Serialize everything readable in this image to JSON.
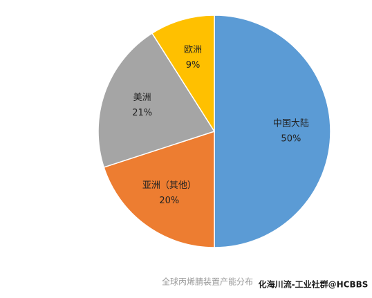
{
  "chart_data": {
    "type": "pie",
    "categories": [
      "中国大陆",
      "亚洲（其他）",
      "美洲",
      "欧洲"
    ],
    "values": [
      50,
      20,
      21,
      9
    ],
    "value_labels": [
      "50%",
      "20%",
      "21%",
      "9%"
    ],
    "colors": [
      "#5b9bd5",
      "#ed7d31",
      "#a5a5a5",
      "#ffc000"
    ],
    "caption": "全球丙烯腈装置产能分布",
    "watermark": "化海川流-工业社群@HCBBS"
  }
}
